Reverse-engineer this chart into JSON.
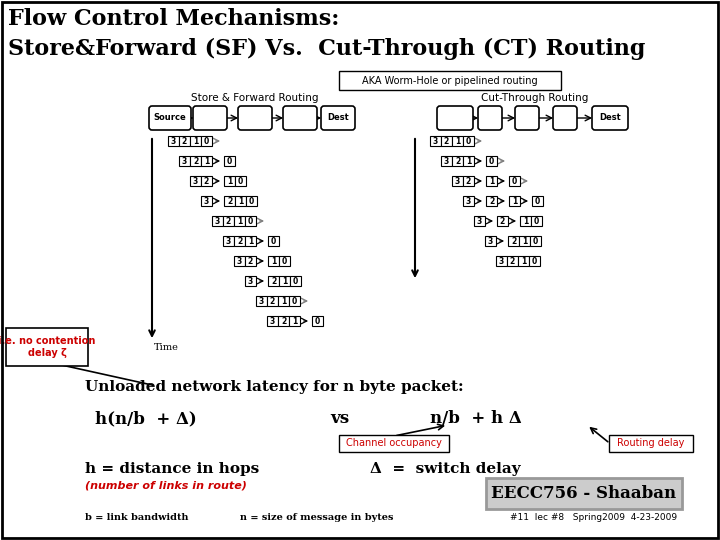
{
  "bg_color": "#ffffff",
  "border_color": "#000000",
  "title_line1": "Flow Control Mechanisms:",
  "title_line2": "Store&Forward (SF) Vs.  Cut-Through (CT) Routing",
  "subtitle": "AKA Worm-Hole or pipelined routing",
  "sf_label": "Store & Forward Routing",
  "ct_label": "Cut-Through Routing",
  "time_label": "Time",
  "annotation_box": "i.e. no contention\ndelay ζ",
  "latency_line": "Unloaded network latency for n byte packet:",
  "sf_formula": "h(n/b  + Δ)",
  "vs_text": "vs",
  "ct_formula": "n/b  + h Δ",
  "channel_occupancy": "Channel occupancy",
  "routing_delay": "Routing delay",
  "h_def": "h = distance in hops",
  "h_def2": "(number of links in route)",
  "delta_def": "Δ  =  switch delay",
  "b_def": "b = link bandwidth",
  "n_def": "n = size of message in bytes",
  "eecc": "EECC756 - Shaaban",
  "footer": "#11  lec #8   Spring2009  4-23-2009",
  "red_color": "#cc0000"
}
